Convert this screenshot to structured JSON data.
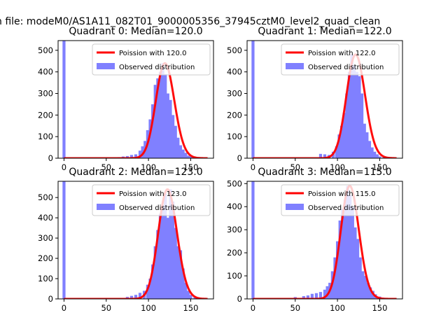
{
  "figure": {
    "suptitle": "n file: modeM0/AS1A11_082T01_9000005356_37945cztM0_level2_quad_clean"
  },
  "colors": {
    "hist": "#8080ff",
    "poisson": "#ff0000",
    "axis": "#000000"
  },
  "chart_data": [
    {
      "type": "bar",
      "title": "Quadrant 0: Median=120.0",
      "xlim": [
        -7,
        177
      ],
      "ylim": [
        0,
        545
      ],
      "xticks": [
        0,
        50,
        100,
        150
      ],
      "yticks": [
        0,
        100,
        200,
        300,
        400,
        500
      ],
      "bin_width": 3.5,
      "median": 120,
      "legend": {
        "placement": "top-right",
        "entries": [
          "Poission with 120.0",
          "Observed distribution"
        ]
      },
      "series": [
        {
          "name": "Observed distribution",
          "kind": "hist",
          "x": [
            0,
            60,
            65,
            70,
            75,
            80,
            85,
            90,
            93,
            96,
            99,
            102,
            105,
            108,
            111,
            114,
            117,
            120,
            123,
            126,
            129,
            132,
            135,
            138,
            141,
            144,
            147,
            150,
            155,
            160
          ],
          "y": [
            545,
            3,
            5,
            8,
            10,
            15,
            18,
            35,
            55,
            80,
            130,
            180,
            250,
            340,
            370,
            400,
            440,
            390,
            300,
            270,
            200,
            150,
            95,
            60,
            40,
            25,
            12,
            8,
            4,
            2
          ]
        },
        {
          "name": "Poission with 120.0",
          "kind": "line",
          "lambda": 120,
          "x_range": [
            0,
            170
          ]
        }
      ]
    },
    {
      "type": "bar",
      "title": "Quadrant 1: Median=122.0",
      "xlim": [
        -7,
        177
      ],
      "ylim": [
        0,
        545
      ],
      "xticks": [
        0,
        50,
        100,
        150
      ],
      "yticks": [
        0,
        100,
        200,
        300,
        400,
        500
      ],
      "bin_width": 3.5,
      "median": 122,
      "legend": {
        "placement": "top-right",
        "entries": [
          "Poission with 122.0",
          "Observed distribution"
        ]
      },
      "series": [
        {
          "name": "Observed distribution",
          "kind": "hist",
          "x": [
            0,
            80,
            85,
            90,
            95,
            99,
            102,
            105,
            108,
            111,
            114,
            117,
            120,
            123,
            126,
            129,
            132,
            135,
            138,
            141,
            144,
            147,
            150,
            155,
            160
          ],
          "y": [
            545,
            20,
            18,
            15,
            30,
            55,
            110,
            150,
            210,
            300,
            400,
            480,
            430,
            400,
            380,
            300,
            160,
            120,
            80,
            50,
            30,
            18,
            8,
            4,
            2
          ]
        },
        {
          "name": "Poission with 122.0",
          "kind": "line",
          "lambda": 122,
          "x_range": [
            0,
            170
          ]
        }
      ]
    },
    {
      "type": "bar",
      "title": "Quadrant 2: Median=123.0",
      "xlim": [
        -7,
        177
      ],
      "ylim": [
        0,
        580
      ],
      "xticks": [
        0,
        50,
        100,
        150
      ],
      "yticks": [
        0,
        100,
        200,
        300,
        400,
        500
      ],
      "bin_width": 3.5,
      "median": 123,
      "legend": {
        "placement": "top-right",
        "entries": [
          "Poission with 123.0",
          "Observed distribution"
        ]
      },
      "series": [
        {
          "name": "Observed distribution",
          "kind": "hist",
          "x": [
            0,
            75,
            80,
            85,
            90,
            95,
            99,
            102,
            105,
            108,
            111,
            114,
            117,
            120,
            123,
            126,
            129,
            132,
            135,
            138,
            141,
            144,
            147,
            150,
            155,
            160
          ],
          "y": [
            580,
            10,
            15,
            20,
            30,
            40,
            70,
            100,
            170,
            260,
            340,
            420,
            460,
            520,
            400,
            540,
            480,
            350,
            260,
            240,
            150,
            80,
            40,
            20,
            8,
            3
          ]
        },
        {
          "name": "Poission with 123.0",
          "kind": "line",
          "lambda": 123,
          "x_range": [
            0,
            170
          ]
        }
      ]
    },
    {
      "type": "bar",
      "title": "Quadrant 3: Median=115.0",
      "xlim": [
        -7,
        177
      ],
      "ylim": [
        0,
        510
      ],
      "xticks": [
        0,
        50,
        100,
        150
      ],
      "yticks": [
        0,
        100,
        200,
        300,
        400,
        500
      ],
      "bin_width": 3.5,
      "median": 115,
      "legend": {
        "placement": "top-right",
        "entries": [
          "Poission with 115.0",
          "Observed distribution"
        ]
      },
      "series": [
        {
          "name": "Observed distribution",
          "kind": "hist",
          "x": [
            0,
            50,
            60,
            65,
            70,
            75,
            80,
            85,
            88,
            91,
            94,
            97,
            100,
            103,
            106,
            109,
            112,
            115,
            118,
            121,
            124,
            127,
            130,
            133,
            136,
            139,
            142,
            145,
            150,
            155,
            160
          ],
          "y": [
            510,
            8,
            12,
            15,
            22,
            25,
            30,
            40,
            55,
            70,
            120,
            180,
            250,
            340,
            390,
            430,
            490,
            450,
            400,
            310,
            260,
            180,
            120,
            100,
            70,
            50,
            35,
            20,
            10,
            5,
            2
          ]
        },
        {
          "name": "Poission with 115.0",
          "kind": "line",
          "lambda": 115,
          "x_range": [
            0,
            170
          ]
        }
      ]
    }
  ]
}
